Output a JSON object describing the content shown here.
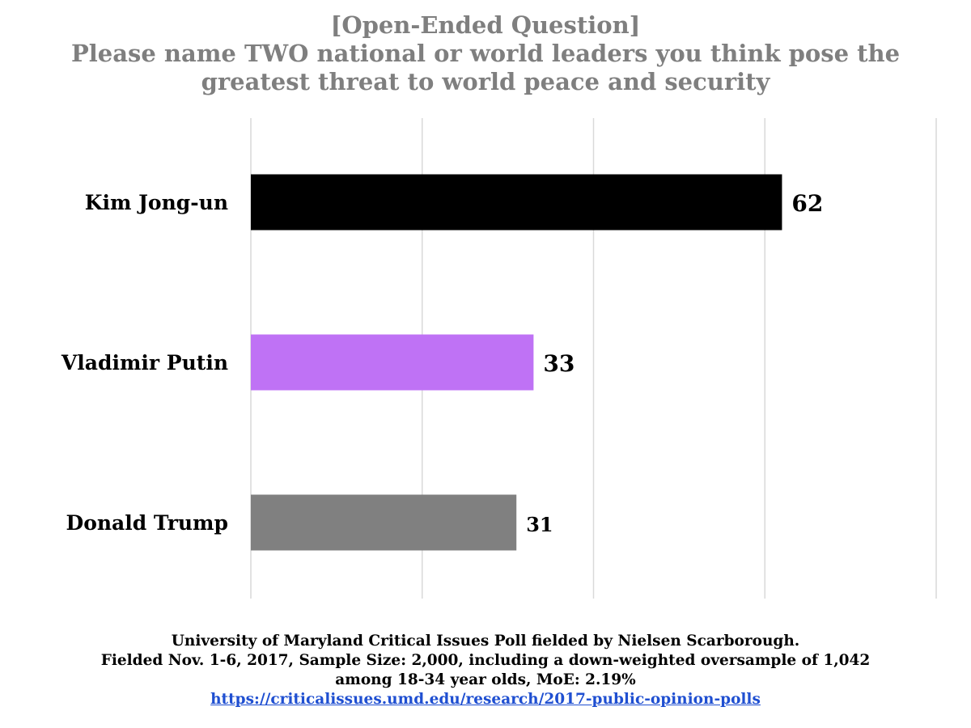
{
  "chart_data": {
    "type": "bar",
    "orientation": "horizontal",
    "title": "[Open-Ended Question]",
    "subtitle_lines": [
      "Please name TWO national or world leaders you think pose the",
      "greatest threat to world peace and security"
    ],
    "categories": [
      "Kim Jong-un",
      "Vladimir Putin",
      "Donald Trump"
    ],
    "values": [
      62,
      33,
      31
    ],
    "bar_colors": [
      "#000000",
      "#bf72f5",
      "#808080"
    ],
    "xlim": [
      0,
      80
    ],
    "grid": true,
    "show_tick_labels": false,
    "data_labels": true
  },
  "footer": {
    "lines": [
      "University of Maryland Critical Issues Poll fielded by Nielsen Scarborough.",
      "Fielded Nov. 1-6, 2017, Sample Size: 2,000, including a down-weighted oversample of 1,042",
      "among 18-34 year olds, MoE: 2.19%"
    ],
    "link": "https://criticalissues.umd.edu/research/2017-public-opinion-polls"
  }
}
